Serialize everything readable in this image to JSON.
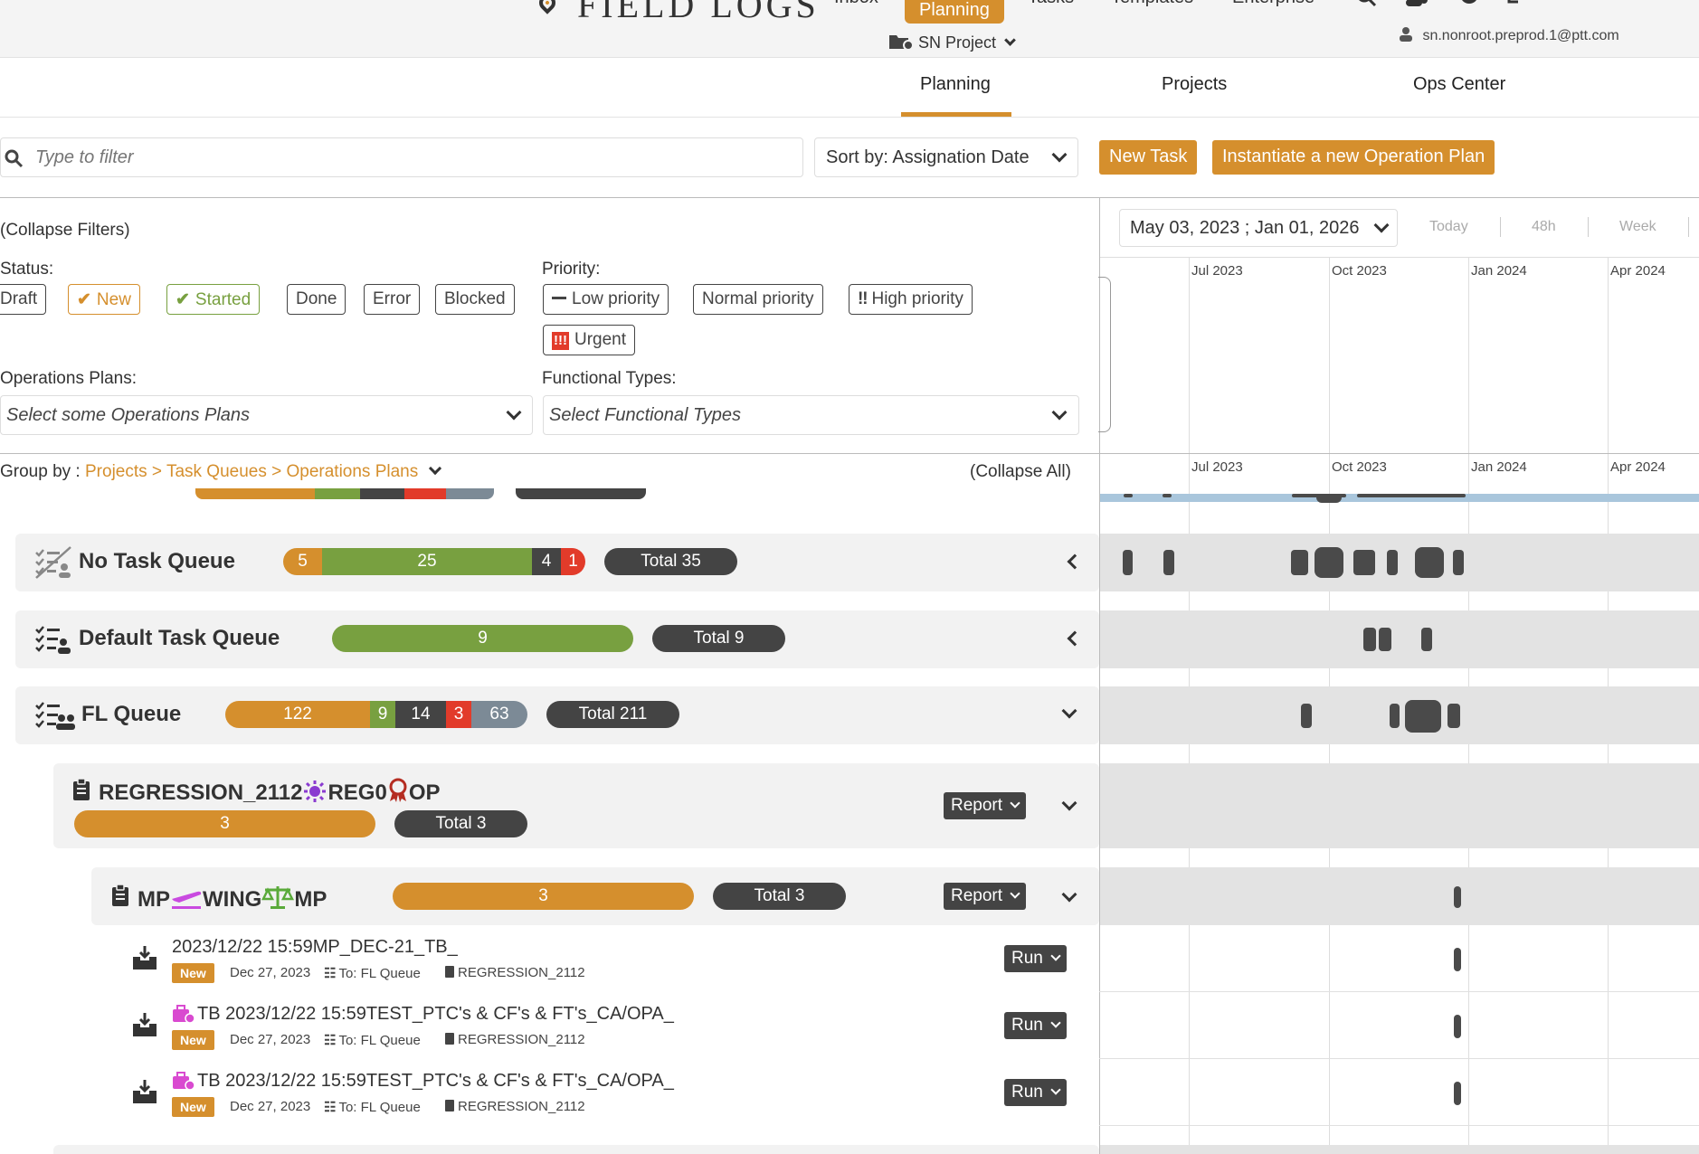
{
  "app": {
    "title": "FIELD LOGS"
  },
  "topnav": {
    "inbox": "Inbox",
    "planning": "Planning",
    "tasks": "Tasks",
    "templates": "Templates",
    "enterprise": "Enterprise"
  },
  "project_selector": {
    "label": "SN Project"
  },
  "user": {
    "email": "sn.nonroot.preprod.1@ptt.com"
  },
  "tabs": {
    "planning": "Planning",
    "projects": "Projects",
    "ops_center": "Ops Center"
  },
  "toolbar": {
    "filter_placeholder": "Type to filter",
    "sort_label": "Sort by: Assignation Date",
    "new_task": "New Task",
    "instantiate": "Instantiate a new Operation Plan"
  },
  "filters": {
    "collapse": "(Collapse Filters)",
    "status_label": "Status:",
    "status": [
      "Draft",
      "New",
      "Started",
      "Done",
      "Error",
      "Blocked"
    ],
    "priority_label": "Priority:",
    "priority": [
      "Low priority",
      "Normal priority",
      "High priority",
      "Urgent"
    ],
    "ops_label": "Operations Plans:",
    "ops_placeholder": "Select some Operations Plans",
    "ft_label": "Functional Types:",
    "ft_placeholder": "Select Functional Types"
  },
  "gantt": {
    "date_range": "May 03, 2023 ; Jan 01, 2026",
    "zoom": [
      "Today",
      "48h",
      "Week"
    ],
    "months": [
      "Jul 2023",
      "Oct 2023",
      "Jan 2024",
      "Apr 2024"
    ]
  },
  "groupby": {
    "label": "Group by :",
    "path": "Projects > Task Queues > Operations Plans",
    "collapse_all": "(Collapse All)"
  },
  "queues": [
    {
      "name": "No Task Queue",
      "segments": [
        "5",
        "25",
        "4",
        "1"
      ],
      "total": "Total 35"
    },
    {
      "name": "Default Task Queue",
      "segments": [
        "9"
      ],
      "total": "Total 9"
    },
    {
      "name": "FL Queue",
      "segments": [
        "122",
        "9",
        "14",
        "3",
        "63"
      ],
      "total": "Total 211"
    }
  ],
  "op_plan": {
    "name": "REGRESSION_2112",
    "tag1": "REG0",
    "tag2": "OP",
    "count": "3",
    "total": "Total 3",
    "report": "Report"
  },
  "sub_plan": {
    "name1": "MP",
    "name2": "WING",
    "name3": "MP",
    "count": "3",
    "total": "Total 3",
    "report": "Report"
  },
  "tasks": [
    {
      "title": "2023/12/22 15:59MP_DEC-21_TB_",
      "status": "New",
      "date": "Dec 27, 2023",
      "queue": "To: FL Queue",
      "plan": "REGRESSION_2112",
      "run": "Run"
    },
    {
      "title": "TB 2023/12/22 15:59TEST_PTC's & CF's & FT's_CA/OPA_",
      "status": "New",
      "date": "Dec 27, 2023",
      "queue": "To: FL Queue",
      "plan": "REGRESSION_2112",
      "run": "Run"
    },
    {
      "title": "TB 2023/12/22 15:59TEST_PTC's & CF's & FT's_CA/OPA_",
      "status": "New",
      "date": "Dec 27, 2023",
      "queue": "To: FL Queue",
      "plan": "REGRESSION_2112",
      "run": "Run"
    }
  ],
  "colors": {
    "accent": "#d58f2d",
    "started": "#78a040",
    "dark": "#444444",
    "error": "#e23b2a",
    "blocked": "#7c8a96"
  }
}
